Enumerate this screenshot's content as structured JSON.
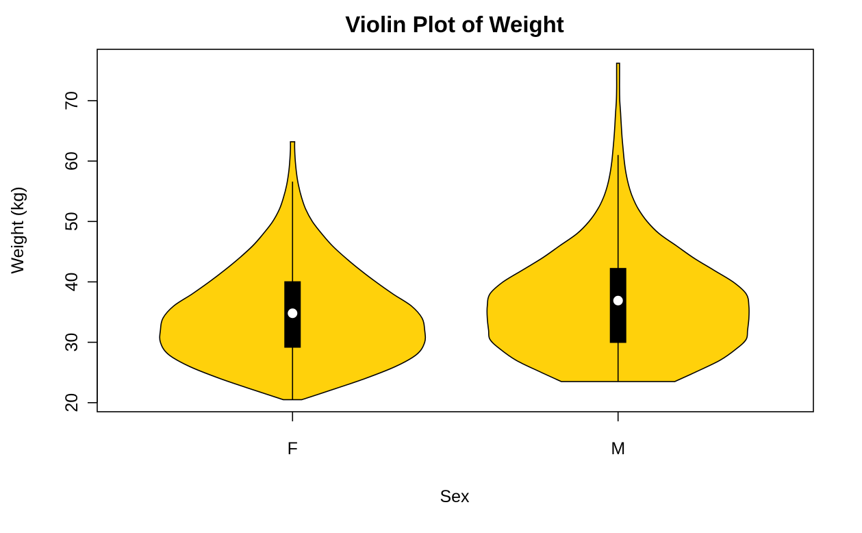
{
  "chart_data": {
    "type": "violin",
    "title": "Violin Plot of Weight",
    "xlabel": "Sex",
    "ylabel": "Weight (kg)",
    "categories": [
      "F",
      "M"
    ],
    "ylim": [
      18.5,
      78.5
    ],
    "yticks": [
      20,
      30,
      40,
      50,
      60,
      70
    ],
    "grid": false,
    "fill_color": "#FFD10B",
    "box_color": "#000000",
    "median_color": "#FFFFFF",
    "groups": [
      {
        "name": "F",
        "min": 20.5,
        "q1": 29.1,
        "median": 34.8,
        "q3": 40.1,
        "max": 63.2,
        "whisker_high": 56.6,
        "density": [
          [
            20.5,
            0.07
          ],
          [
            22,
            0.28
          ],
          [
            24,
            0.55
          ],
          [
            26,
            0.78
          ],
          [
            28,
            0.94
          ],
          [
            30,
            1.0
          ],
          [
            32,
            1.0
          ],
          [
            34,
            0.98
          ],
          [
            36,
            0.9
          ],
          [
            38,
            0.76
          ],
          [
            40,
            0.63
          ],
          [
            42,
            0.51
          ],
          [
            44,
            0.4
          ],
          [
            46,
            0.3
          ],
          [
            48,
            0.22
          ],
          [
            50,
            0.15
          ],
          [
            52,
            0.1
          ],
          [
            54,
            0.068
          ],
          [
            56,
            0.045
          ],
          [
            58,
            0.03
          ],
          [
            60,
            0.021
          ],
          [
            62,
            0.016
          ],
          [
            63.2,
            0.016
          ]
        ]
      },
      {
        "name": "M",
        "min": 23.5,
        "q1": 29.9,
        "median": 36.9,
        "q3": 42.3,
        "max": 76.2,
        "whisker_high": 61.0,
        "density": [
          [
            23.5,
            0.43
          ],
          [
            25,
            0.58
          ],
          [
            27,
            0.77
          ],
          [
            29,
            0.9
          ],
          [
            30.5,
            0.97
          ],
          [
            32,
            0.98
          ],
          [
            34,
            0.99
          ],
          [
            36,
            0.99
          ],
          [
            38,
            0.97
          ],
          [
            40,
            0.87
          ],
          [
            42,
            0.72
          ],
          [
            44,
            0.57
          ],
          [
            46,
            0.44
          ],
          [
            48,
            0.31
          ],
          [
            50,
            0.22
          ],
          [
            52,
            0.155
          ],
          [
            54,
            0.11
          ],
          [
            56,
            0.08
          ],
          [
            58,
            0.06
          ],
          [
            60,
            0.047
          ],
          [
            62,
            0.038
          ],
          [
            64,
            0.03
          ],
          [
            66,
            0.024
          ],
          [
            68,
            0.019
          ],
          [
            70,
            0.013
          ],
          [
            72,
            0.011
          ],
          [
            74,
            0.011
          ],
          [
            76.2,
            0.011
          ]
        ]
      }
    ]
  }
}
